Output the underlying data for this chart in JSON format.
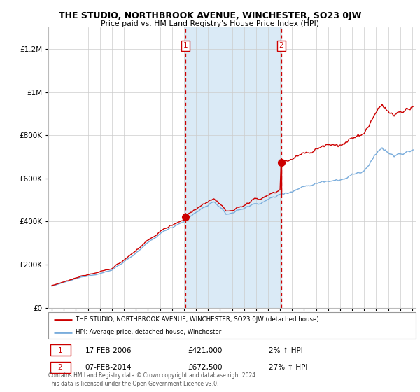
{
  "title": "THE STUDIO, NORTHBROOK AVENUE, WINCHESTER, SO23 0JW",
  "subtitle": "Price paid vs. HM Land Registry's House Price Index (HPI)",
  "legend_line1": "THE STUDIO, NORTHBROOK AVENUE, WINCHESTER, SO23 0JW (detached house)",
  "legend_line2": "HPI: Average price, detached house, Winchester",
  "footnote": "Contains HM Land Registry data © Crown copyright and database right 2024.\nThis data is licensed under the Open Government Licence v3.0.",
  "transaction1_date": "17-FEB-2006",
  "transaction1_price": "£421,000",
  "transaction1_hpi": "2% ↑ HPI",
  "transaction1_year": 2006.125,
  "transaction1_value": 421000,
  "transaction2_date": "07-FEB-2014",
  "transaction2_price": "£672,500",
  "transaction2_hpi": "27% ↑ HPI",
  "transaction2_year": 2014.1,
  "transaction2_value": 672500,
  "hpi_color": "#7aaddc",
  "price_color": "#cc0000",
  "shaded_color": "#daeaf6",
  "vline_color": "#cc0000",
  "background_color": "#ffffff",
  "ylim": [
    0,
    1300000
  ],
  "xlim_start": 1994.7,
  "xlim_end": 2025.3
}
